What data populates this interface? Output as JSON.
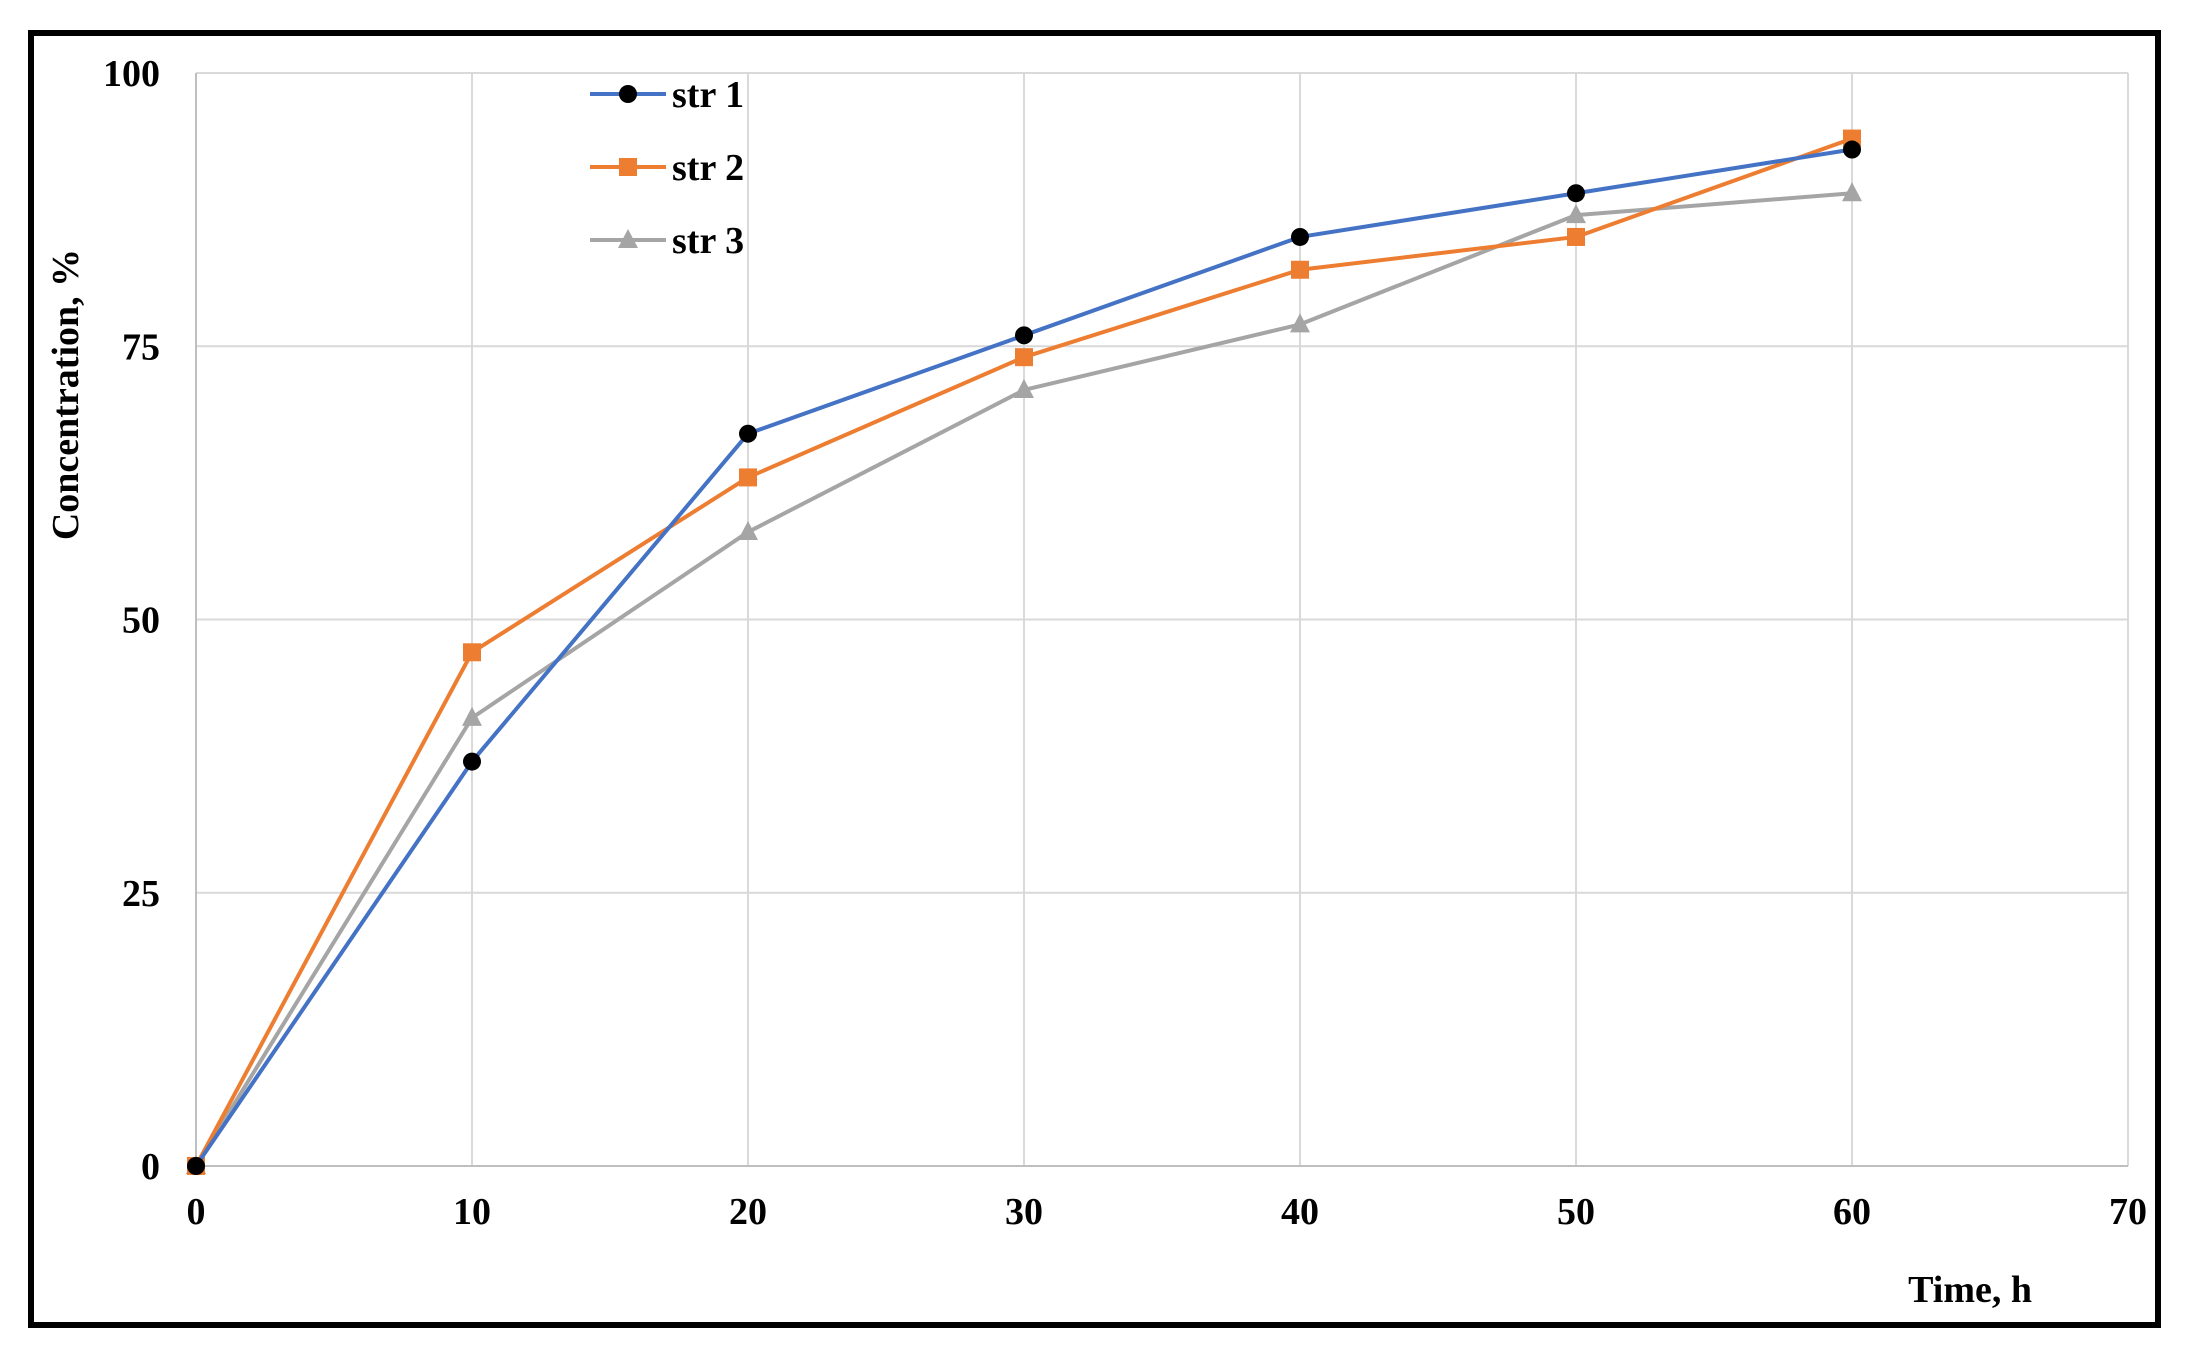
{
  "chart_data": {
    "type": "line",
    "title": "",
    "xlabel": "Time, h",
    "ylabel": "Concentration, %",
    "xlim": [
      0,
      70
    ],
    "ylim": [
      0,
      100
    ],
    "xticks": [
      0,
      10,
      20,
      30,
      40,
      50,
      60,
      70
    ],
    "yticks": [
      0,
      25,
      50,
      75,
      100
    ],
    "grid": true,
    "legend_position": "top-left",
    "x": [
      0,
      10,
      20,
      30,
      40,
      50,
      60
    ],
    "series": [
      {
        "name": "str 1",
        "color": "#4472C4",
        "marker": "circle",
        "marker_color": "#000000",
        "values": [
          0,
          37,
          67,
          76,
          85,
          89,
          93
        ]
      },
      {
        "name": "str 2",
        "color": "#ED7D31",
        "marker": "square",
        "marker_color": "#ED7D31",
        "values": [
          0,
          47,
          63,
          74,
          82,
          85,
          94
        ]
      },
      {
        "name": "str 3",
        "color": "#A5A5A5",
        "marker": "triangle",
        "marker_color": "#A5A5A5",
        "values": [
          0,
          41,
          58,
          71,
          77,
          87,
          89
        ]
      }
    ]
  }
}
